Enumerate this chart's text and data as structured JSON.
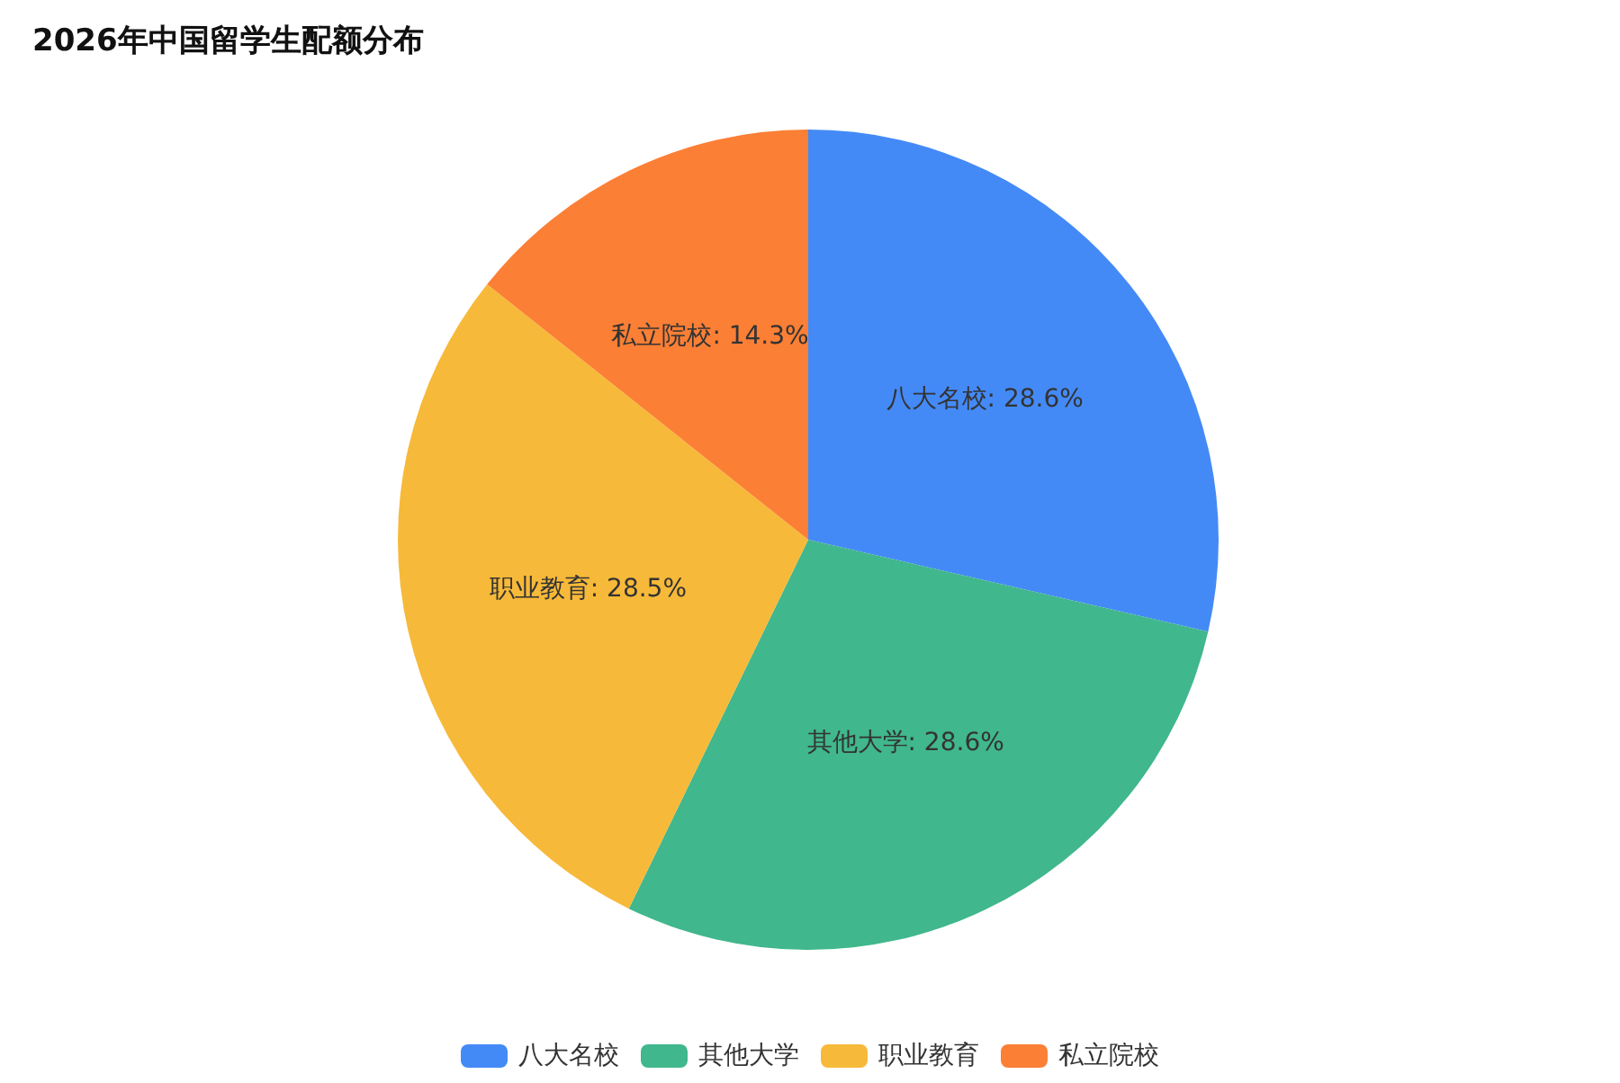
{
  "chart_data": {
    "type": "pie",
    "title": "2026年中国留学生配额分布",
    "categories": [
      "八大名校",
      "其他大学",
      "职业教育",
      "私立院校"
    ],
    "values": [
      28.6,
      28.6,
      28.5,
      14.3
    ],
    "colors": [
      "#448af7",
      "#40b78c",
      "#f7b939",
      "#fb7f35"
    ],
    "value_labels": [
      "八大名校: 28.6%",
      "其他大学: 28.6%",
      "职业教育: 28.5%",
      "私立院校: 14.3%"
    ],
    "legend": "bottom"
  }
}
